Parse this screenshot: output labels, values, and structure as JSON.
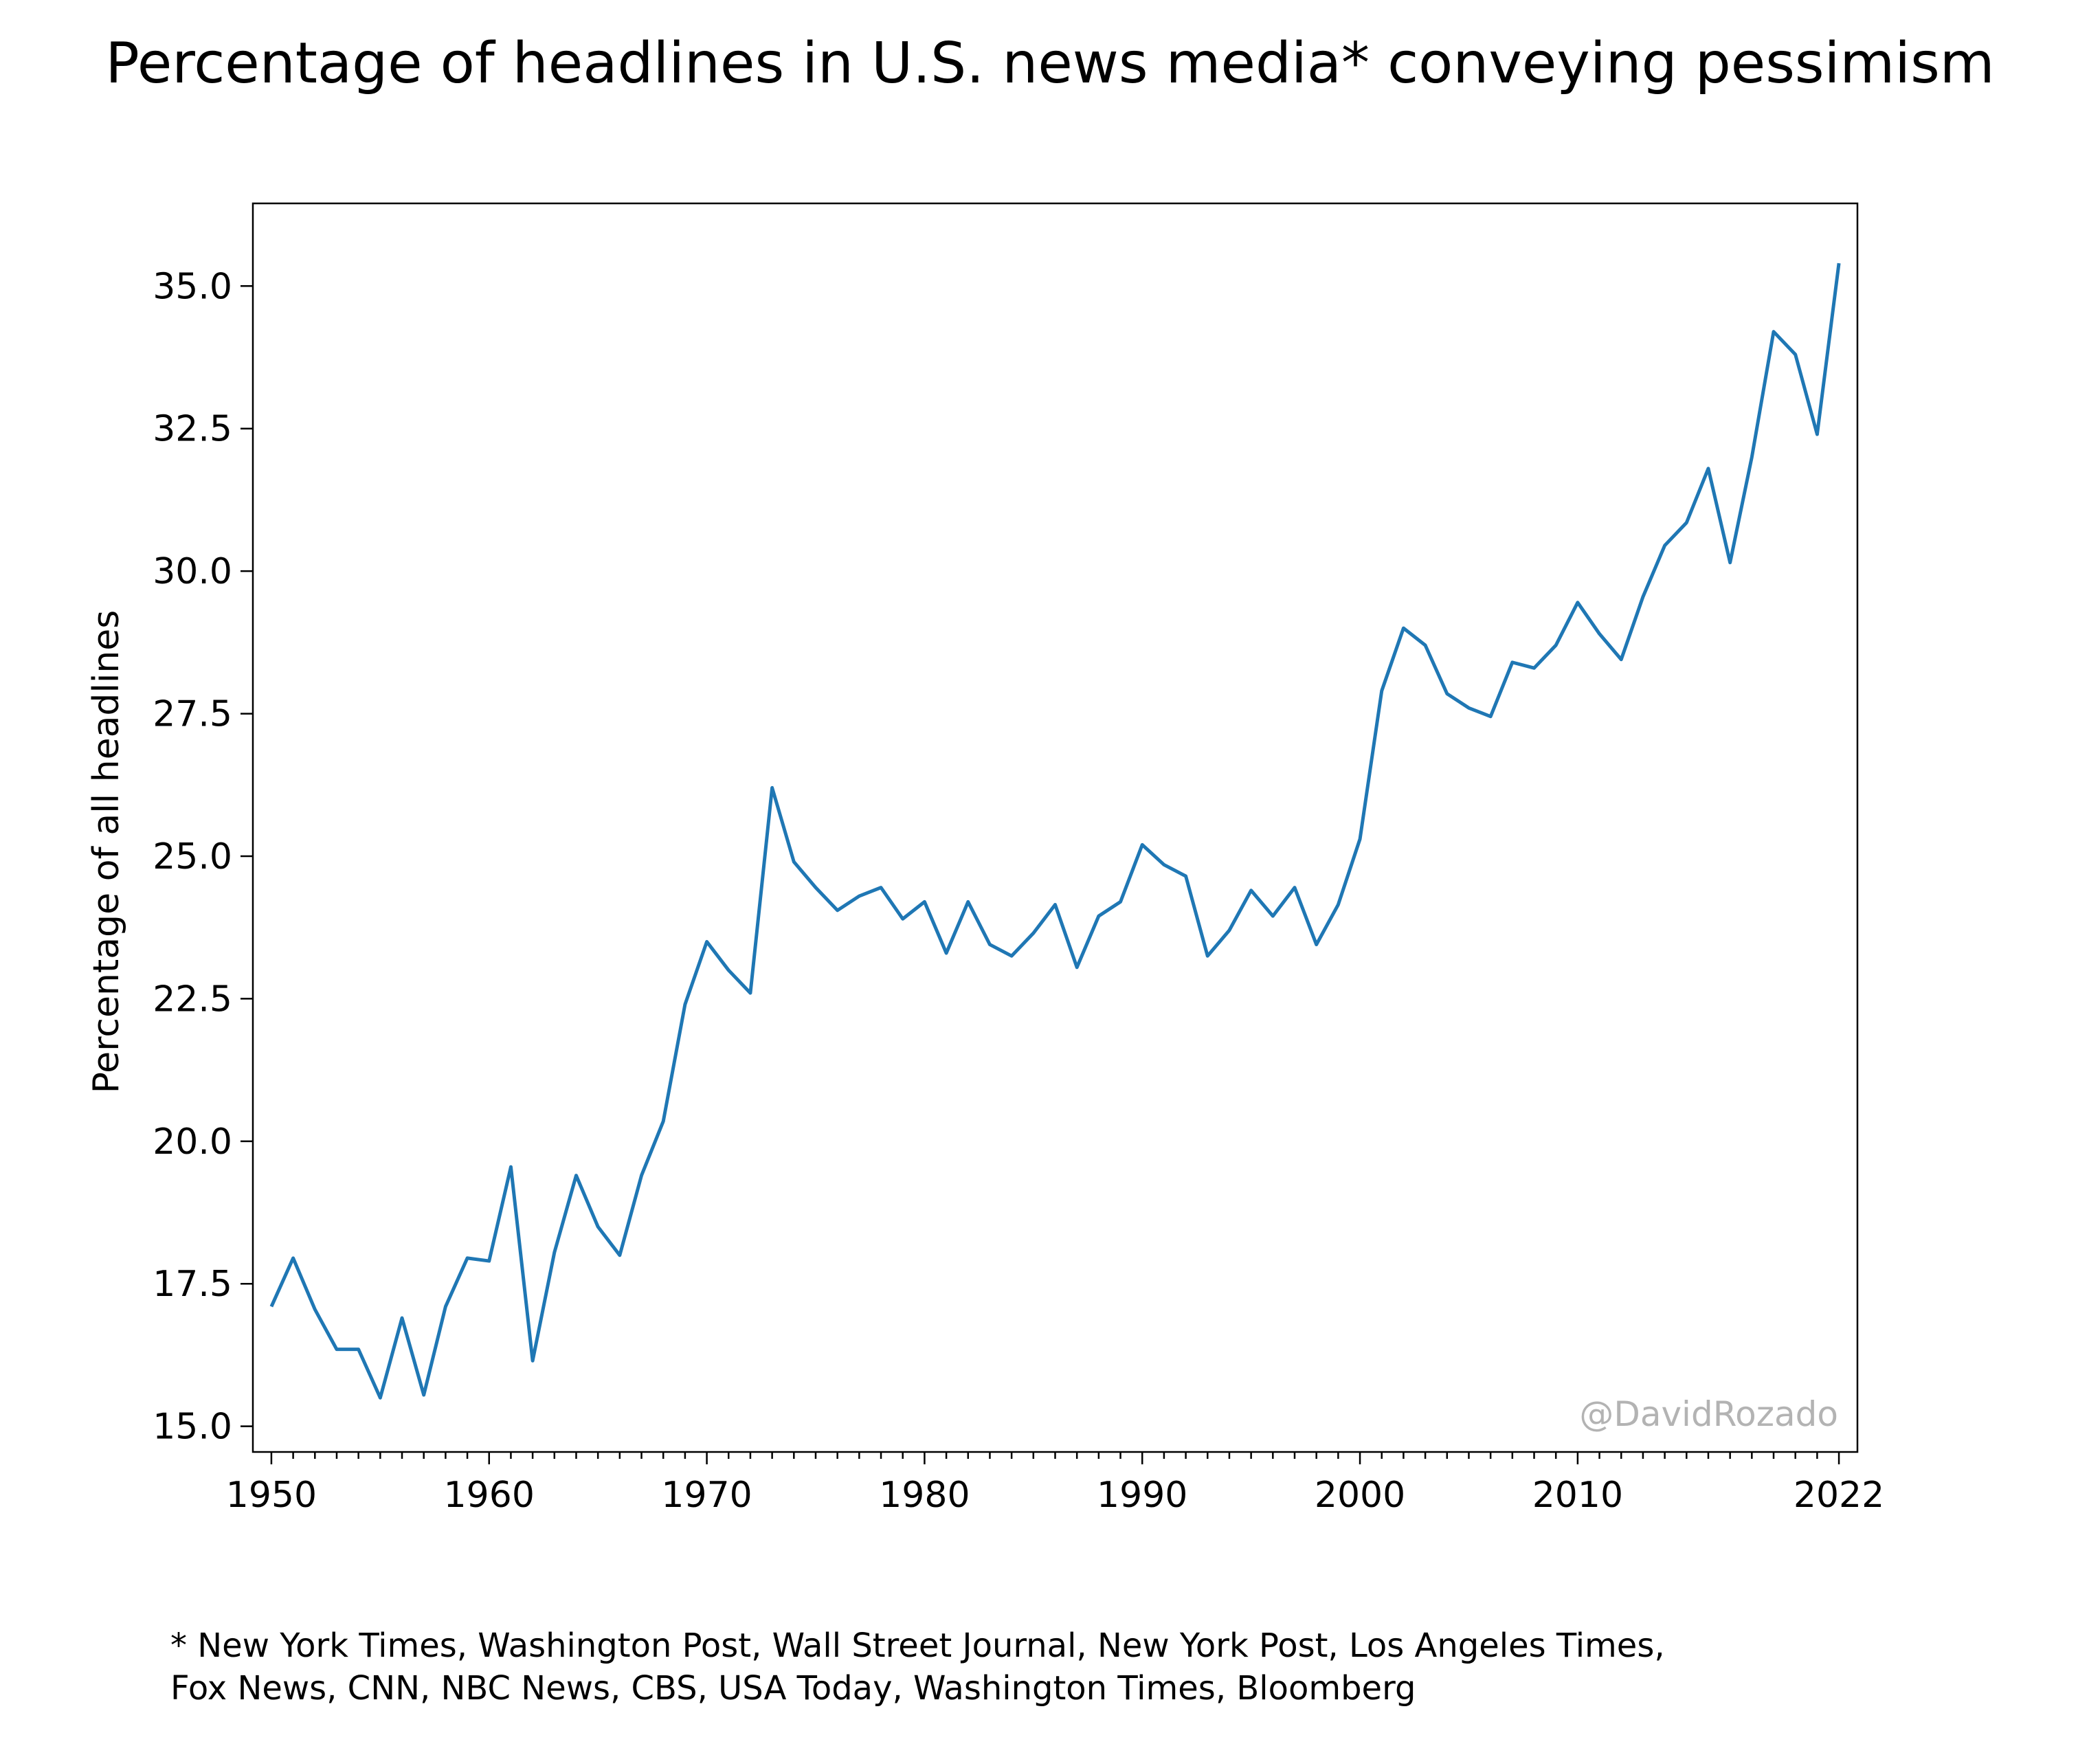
{
  "chart_data": {
    "type": "line",
    "title": "Percentage of headlines in U.S. news media* conveying pessimism",
    "ylabel": "Percentage of all headlines",
    "xlabel": "",
    "xlim": [
      1949.15,
      2022.85
    ],
    "ylim": [
      14.55,
      36.45
    ],
    "x_ticks": [
      1950,
      1960,
      1970,
      1980,
      1990,
      2000,
      2010,
      2022
    ],
    "x_tick_labels": [
      "1950",
      "1960",
      "1970",
      "1980",
      "1990",
      "2000",
      "2010",
      "2022"
    ],
    "y_ticks": [
      15.0,
      17.5,
      20.0,
      22.5,
      25.0,
      27.5,
      30.0,
      32.5,
      35.0
    ],
    "y_tick_labels": [
      "15.0",
      "17.5",
      "20.0",
      "22.5",
      "25.0",
      "27.5",
      "30.0",
      "32.5",
      "35.0"
    ],
    "grid": false,
    "line_color": "#1f77b4",
    "watermark": "@DavidRozado",
    "series": [
      {
        "x": [
          1950,
          1951,
          1952,
          1953,
          1954,
          1955,
          1956,
          1957,
          1958,
          1959,
          1960,
          1961,
          1962,
          1963,
          1964,
          1965,
          1966,
          1967,
          1968,
          1969,
          1970,
          1971,
          1972,
          1973,
          1974,
          1975,
          1976,
          1977,
          1978,
          1979,
          1980,
          1981,
          1982,
          1983,
          1984,
          1985,
          1986,
          1987,
          1988,
          1989,
          1990,
          1991,
          1992,
          1993,
          1994,
          1995,
          1996,
          1997,
          1998,
          1999,
          2000,
          2001,
          2002,
          2003,
          2004,
          2005,
          2006,
          2007,
          2008,
          2009,
          2010,
          2011,
          2012,
          2013,
          2014,
          2015,
          2016,
          2017,
          2018,
          2019,
          2020,
          2021,
          2022
        ],
        "y": [
          17.1,
          17.95,
          17.05,
          16.35,
          16.35,
          15.5,
          16.9,
          15.55,
          17.1,
          17.95,
          17.9,
          19.55,
          16.15,
          18.05,
          19.4,
          18.5,
          18.0,
          19.4,
          20.35,
          22.4,
          23.5,
          23.0,
          22.6,
          26.2,
          24.9,
          24.45,
          24.05,
          24.3,
          24.45,
          23.9,
          24.2,
          23.3,
          24.2,
          23.45,
          23.25,
          23.65,
          24.15,
          23.05,
          23.95,
          24.2,
          25.2,
          24.85,
          24.65,
          23.25,
          23.7,
          24.4,
          23.95,
          24.45,
          23.45,
          24.15,
          25.3,
          27.9,
          29.0,
          28.7,
          27.85,
          27.6,
          27.45,
          28.4,
          28.3,
          28.7,
          29.45,
          28.9,
          28.45,
          29.55,
          30.45,
          30.85,
          31.8,
          30.15,
          32.0,
          34.2,
          33.8,
          32.4,
          35.4
        ]
      }
    ]
  },
  "footnote": {
    "line1": "* New York Times, Washington Post, Wall Street Journal, New York Post, Los Angeles Times,",
    "line2": "Fox News, CNN, NBC News, CBS, USA Today, Washington Times, Bloomberg"
  }
}
